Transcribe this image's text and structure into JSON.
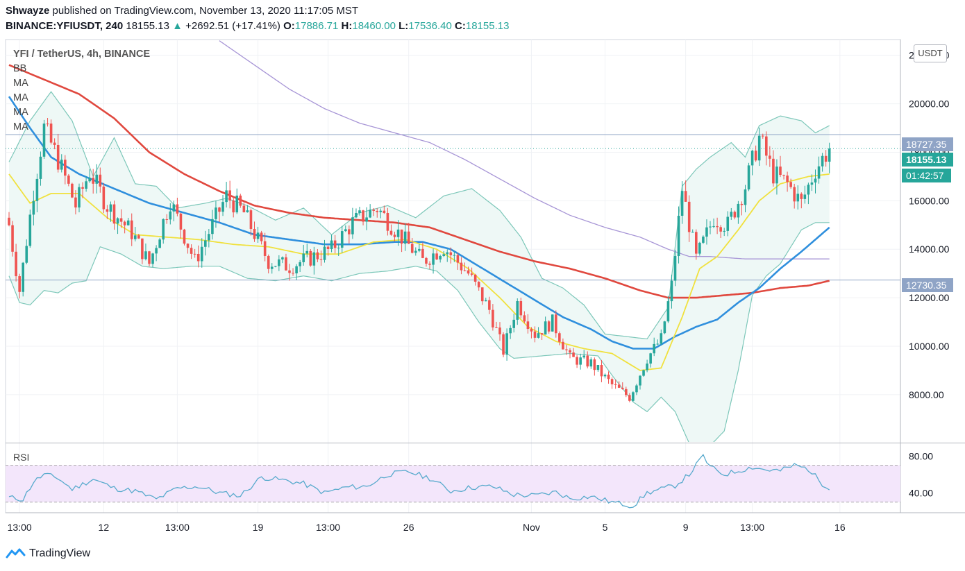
{
  "header": {
    "author": "Shwayze",
    "published": "published on TradingView.com, November 13, 2020 11:17:05 MST",
    "symbol": "BINANCE:YFIUSDT, 240",
    "last": "18155.13",
    "change_arrow": "▲",
    "change": "+2692.51 (+17.41%)",
    "o_label": "O:",
    "o_value": "17886.71",
    "h_label": "H:",
    "h_value": "18460.00",
    "l_label": "L:",
    "l_value": "17536.40",
    "c_label": "C:",
    "c_value": "18155.13"
  },
  "legend": {
    "title": "YFI / TetherUS, 4h, BINANCE",
    "indicators": [
      "BB",
      "MA",
      "MA",
      "MA",
      "MA"
    ]
  },
  "rsi_label": "RSI",
  "unit_button": "USDT",
  "price_tags": {
    "resistance": "18727.35",
    "current": "18155.13",
    "countdown": "01:42:57",
    "support": "12730.35"
  },
  "footer": {
    "brand": "TradingView",
    "logo_icon": "tradingview-logo-icon"
  },
  "colors": {
    "up": "#26a69a",
    "down": "#ef5350",
    "bb": "#7cc7b9",
    "bb_fill": "#eef8f6",
    "ma20": "#f0e13e",
    "ma50": "#2f8fdd",
    "ma100": "#e0483e",
    "ma200": "#a795d6",
    "rsi": "#58aacd",
    "rsi_band": "#f3e6fb",
    "hline": "#8fa4c6"
  },
  "chart_data": [
    {
      "type": "candlestick",
      "title": "YFI / TetherUS, 4h, BINANCE",
      "y_unit": "USDT",
      "y_ticks": [
        8000,
        10000,
        12000,
        14000,
        16000,
        18000,
        20000,
        22000
      ],
      "y_tick_labels": [
        "8000.00",
        "10000.00",
        "12000.00",
        "14000.00",
        "16000.00",
        "18000.00",
        "20000.00",
        "22000.00"
      ],
      "ylim": [
        6050,
        22650
      ],
      "x_tick_labels": [
        "13:00",
        "12",
        "13:00",
        "19",
        "13:00",
        "26",
        "Nov",
        "5",
        "9",
        "13:00",
        "16"
      ],
      "x_tick_candle_index": [
        3,
        27,
        48,
        71,
        91,
        114,
        149,
        170,
        193,
        212,
        237
      ],
      "horizontal_lines": [
        18727.35,
        12730.35
      ],
      "last_price": 18155.13,
      "series_anchors": {
        "close": [
          [
            0,
            15000
          ],
          [
            3,
            12300
          ],
          [
            7,
            16400
          ],
          [
            10,
            19000
          ],
          [
            14,
            17700
          ],
          [
            19,
            15800
          ],
          [
            23,
            17200
          ],
          [
            28,
            15800
          ],
          [
            35,
            14700
          ],
          [
            40,
            13400
          ],
          [
            46,
            16000
          ],
          [
            53,
            13500
          ],
          [
            62,
            16200
          ],
          [
            67,
            15500
          ],
          [
            74,
            13500
          ],
          [
            80,
            13300
          ],
          [
            87,
            13700
          ],
          [
            92,
            14000
          ],
          [
            98,
            15100
          ],
          [
            105,
            15700
          ],
          [
            112,
            14500
          ],
          [
            118,
            13500
          ],
          [
            124,
            14100
          ],
          [
            131,
            13000
          ],
          [
            137,
            11500
          ],
          [
            141,
            9800
          ],
          [
            145,
            11800
          ],
          [
            150,
            10500
          ],
          [
            155,
            11000
          ],
          [
            160,
            9500
          ],
          [
            166,
            9300
          ],
          [
            172,
            8400
          ],
          [
            177,
            7900
          ],
          [
            182,
            9500
          ],
          [
            186,
            10300
          ],
          [
            189,
            12500
          ],
          [
            192,
            16500
          ],
          [
            196,
            13600
          ],
          [
            201,
            15300
          ],
          [
            205,
            15000
          ],
          [
            210,
            16600
          ],
          [
            214,
            18600
          ],
          [
            218,
            17100
          ],
          [
            222,
            16700
          ],
          [
            226,
            15900
          ],
          [
            230,
            17300
          ],
          [
            234,
            18155
          ]
        ],
        "ma20": [
          [
            0,
            17100
          ],
          [
            6,
            15900
          ],
          [
            12,
            16300
          ],
          [
            20,
            16300
          ],
          [
            28,
            15300
          ],
          [
            36,
            14600
          ],
          [
            45,
            14500
          ],
          [
            54,
            14400
          ],
          [
            64,
            14200
          ],
          [
            74,
            14100
          ],
          [
            84,
            13800
          ],
          [
            94,
            13800
          ],
          [
            104,
            14300
          ],
          [
            113,
            14400
          ],
          [
            122,
            14000
          ],
          [
            131,
            13200
          ],
          [
            140,
            12000
          ],
          [
            148,
            10800
          ],
          [
            156,
            10200
          ],
          [
            164,
            9900
          ],
          [
            172,
            9700
          ],
          [
            180,
            9000
          ],
          [
            186,
            9100
          ],
          [
            192,
            11200
          ],
          [
            197,
            13200
          ],
          [
            202,
            13700
          ],
          [
            208,
            14800
          ],
          [
            214,
            16000
          ],
          [
            220,
            16700
          ],
          [
            228,
            17000
          ],
          [
            234,
            17100
          ]
        ],
        "ma50": [
          [
            0,
            20300
          ],
          [
            6,
            19000
          ],
          [
            12,
            17800
          ],
          [
            20,
            17100
          ],
          [
            30,
            16500
          ],
          [
            40,
            15900
          ],
          [
            50,
            15500
          ],
          [
            60,
            15100
          ],
          [
            70,
            14600
          ],
          [
            80,
            14400
          ],
          [
            90,
            14200
          ],
          [
            100,
            14200
          ],
          [
            110,
            14300
          ],
          [
            118,
            14300
          ],
          [
            126,
            14000
          ],
          [
            134,
            13300
          ],
          [
            142,
            12600
          ],
          [
            150,
            11900
          ],
          [
            158,
            11200
          ],
          [
            166,
            10700
          ],
          [
            172,
            10200
          ],
          [
            178,
            9900
          ],
          [
            184,
            9900
          ],
          [
            190,
            10400
          ],
          [
            196,
            10800
          ],
          [
            202,
            11100
          ],
          [
            208,
            11800
          ],
          [
            214,
            12400
          ],
          [
            220,
            13200
          ],
          [
            226,
            13900
          ],
          [
            234,
            14900
          ]
        ],
        "ma100": [
          [
            0,
            21600
          ],
          [
            10,
            21000
          ],
          [
            20,
            20400
          ],
          [
            30,
            19400
          ],
          [
            40,
            18000
          ],
          [
            50,
            17100
          ],
          [
            60,
            16400
          ],
          [
            70,
            15800
          ],
          [
            80,
            15500
          ],
          [
            90,
            15300
          ],
          [
            100,
            15200
          ],
          [
            110,
            15100
          ],
          [
            120,
            14900
          ],
          [
            130,
            14400
          ],
          [
            140,
            13900
          ],
          [
            150,
            13500
          ],
          [
            160,
            13200
          ],
          [
            170,
            12800
          ],
          [
            180,
            12300
          ],
          [
            188,
            12000
          ],
          [
            196,
            12000
          ],
          [
            204,
            12100
          ],
          [
            212,
            12200
          ],
          [
            220,
            12400
          ],
          [
            228,
            12500
          ],
          [
            234,
            12700
          ]
        ],
        "ma200": [
          [
            60,
            22600
          ],
          [
            70,
            21600
          ],
          [
            80,
            20600
          ],
          [
            90,
            19800
          ],
          [
            100,
            19200
          ],
          [
            110,
            18800
          ],
          [
            120,
            18400
          ],
          [
            130,
            17700
          ],
          [
            140,
            16900
          ],
          [
            150,
            16100
          ],
          [
            160,
            15400
          ],
          [
            170,
            14900
          ],
          [
            180,
            14500
          ],
          [
            188,
            14000
          ],
          [
            194,
            13700
          ],
          [
            200,
            13700
          ],
          [
            210,
            13600
          ],
          [
            220,
            13600
          ],
          [
            234,
            13600
          ]
        ],
        "bb_upper": [
          [
            0,
            17600
          ],
          [
            6,
            19300
          ],
          [
            12,
            20500
          ],
          [
            18,
            19300
          ],
          [
            24,
            17000
          ],
          [
            30,
            18600
          ],
          [
            36,
            16700
          ],
          [
            42,
            16600
          ],
          [
            48,
            15700
          ],
          [
            56,
            15900
          ],
          [
            62,
            16100
          ],
          [
            68,
            15800
          ],
          [
            76,
            15200
          ],
          [
            84,
            15700
          ],
          [
            92,
            14600
          ],
          [
            100,
            15500
          ],
          [
            108,
            15800
          ],
          [
            116,
            15300
          ],
          [
            124,
            16200
          ],
          [
            132,
            16500
          ],
          [
            140,
            15600
          ],
          [
            146,
            14500
          ],
          [
            152,
            12800
          ],
          [
            158,
            12400
          ],
          [
            164,
            11700
          ],
          [
            170,
            10500
          ],
          [
            176,
            10400
          ],
          [
            182,
            10300
          ],
          [
            188,
            11600
          ],
          [
            192,
            16600
          ],
          [
            196,
            17300
          ],
          [
            200,
            17800
          ],
          [
            206,
            18400
          ],
          [
            210,
            17800
          ],
          [
            214,
            19100
          ],
          [
            220,
            19500
          ],
          [
            226,
            19300
          ],
          [
            230,
            18800
          ],
          [
            234,
            19100
          ]
        ],
        "bb_lower": [
          [
            0,
            12900
          ],
          [
            3,
            11800
          ],
          [
            6,
            11700
          ],
          [
            10,
            12300
          ],
          [
            14,
            12200
          ],
          [
            18,
            12600
          ],
          [
            22,
            12700
          ],
          [
            26,
            14100
          ],
          [
            32,
            13800
          ],
          [
            38,
            13300
          ],
          [
            44,
            13200
          ],
          [
            52,
            13300
          ],
          [
            60,
            13300
          ],
          [
            68,
            12800
          ],
          [
            76,
            12700
          ],
          [
            84,
            12900
          ],
          [
            92,
            12700
          ],
          [
            100,
            13000
          ],
          [
            108,
            13100
          ],
          [
            116,
            13300
          ],
          [
            122,
            13100
          ],
          [
            128,
            12300
          ],
          [
            134,
            11000
          ],
          [
            140,
            9900
          ],
          [
            144,
            9500
          ],
          [
            152,
            9600
          ],
          [
            160,
            9700
          ],
          [
            168,
            9600
          ],
          [
            172,
            8800
          ],
          [
            178,
            7700
          ],
          [
            182,
            7300
          ],
          [
            186,
            7900
          ],
          [
            190,
            7300
          ],
          [
            194,
            6000
          ],
          [
            196,
            5800
          ],
          [
            200,
            5900
          ],
          [
            204,
            6500
          ],
          [
            208,
            9000
          ],
          [
            212,
            12100
          ],
          [
            216,
            12900
          ],
          [
            220,
            13400
          ],
          [
            226,
            14800
          ],
          [
            230,
            15100
          ],
          [
            234,
            15100
          ]
        ]
      }
    },
    {
      "type": "line",
      "title": "RSI",
      "y_ticks": [
        40,
        80
      ],
      "y_tick_labels": [
        "40.00",
        "80.00"
      ],
      "ylim": [
        18.5,
        93
      ],
      "band": [
        30,
        70
      ],
      "anchors": [
        [
          0,
          35
        ],
        [
          4,
          33
        ],
        [
          7,
          52
        ],
        [
          10,
          60
        ],
        [
          14,
          56
        ],
        [
          18,
          44
        ],
        [
          24,
          55
        ],
        [
          30,
          45
        ],
        [
          36,
          42
        ],
        [
          42,
          33
        ],
        [
          48,
          45
        ],
        [
          54,
          47
        ],
        [
          60,
          40
        ],
        [
          66,
          37
        ],
        [
          72,
          57
        ],
        [
          78,
          54
        ],
        [
          84,
          50
        ],
        [
          90,
          40
        ],
        [
          96,
          46
        ],
        [
          102,
          47
        ],
        [
          108,
          60
        ],
        [
          114,
          63
        ],
        [
          120,
          56
        ],
        [
          126,
          42
        ],
        [
          132,
          46
        ],
        [
          138,
          47
        ],
        [
          144,
          38
        ],
        [
          150,
          37
        ],
        [
          156,
          41
        ],
        [
          160,
          34
        ],
        [
          166,
          36
        ],
        [
          172,
          30
        ],
        [
          178,
          26
        ],
        [
          182,
          40
        ],
        [
          186,
          44
        ],
        [
          190,
          48
        ],
        [
          194,
          60
        ],
        [
          198,
          80
        ],
        [
          200,
          68
        ],
        [
          204,
          60
        ],
        [
          208,
          64
        ],
        [
          212,
          68
        ],
        [
          216,
          65
        ],
        [
          220,
          64
        ],
        [
          224,
          70
        ],
        [
          228,
          66
        ],
        [
          232,
          50
        ],
        [
          234,
          46
        ],
        [
          236,
          55
        ],
        [
          238,
          62
        ]
      ]
    }
  ]
}
